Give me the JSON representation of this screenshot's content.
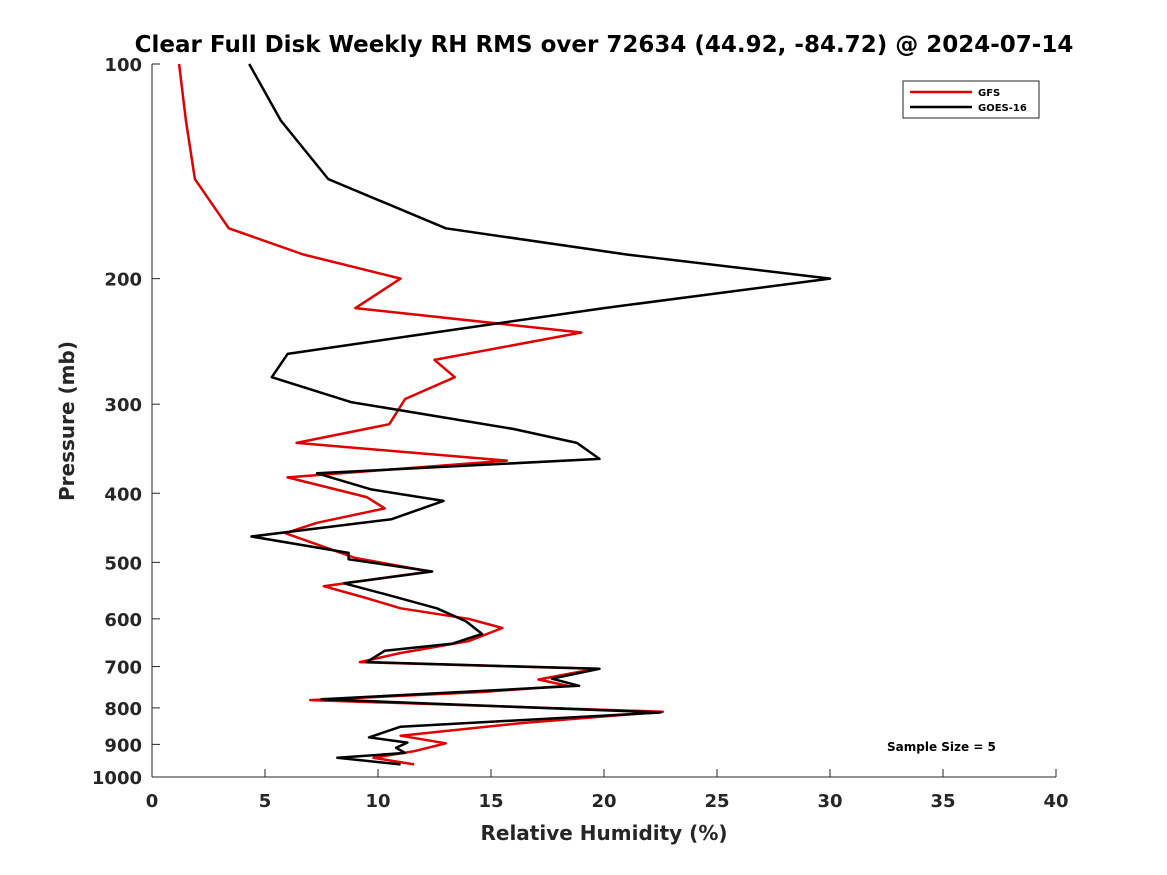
{
  "chart_data": {
    "type": "line",
    "title": "Clear Full Disk Weekly RH RMS over 72634 (44.92, -84.72) @ 2024-07-14",
    "xlabel": "Relative Humidity (%)",
    "ylabel": "Pressure (mb)",
    "xlim": [
      0,
      40
    ],
    "ylim": [
      100,
      1000
    ],
    "yscale": "log",
    "y_reversed": true,
    "xticks": [
      0,
      5,
      10,
      15,
      20,
      25,
      30,
      35,
      40
    ],
    "yticks": [
      100,
      200,
      300,
      400,
      500,
      600,
      700,
      800,
      900,
      1000
    ],
    "legend_location": "top-right",
    "annotation": "Sample Size = 5",
    "series": [
      {
        "name": "GFS",
        "color": "#e00000",
        "x": [
          1.2,
          1.5,
          1.9,
          3.4,
          6.7,
          11.0,
          9.0,
          19.0,
          12.5,
          13.4,
          11.2,
          10.5,
          6.4,
          15.7,
          6.0,
          9.5,
          10.3,
          7.3,
          5.9,
          7.4,
          9.0,
          12.3,
          7.6,
          9.4,
          11.0,
          14.0,
          15.5,
          14.0,
          11.0,
          9.2,
          19.6,
          17.1,
          18.4,
          14.6,
          7.0,
          22.6,
          16.4,
          11.0,
          13.0,
          11.6,
          9.8,
          11.6
        ],
        "y": [
          100,
          120,
          145,
          170,
          185,
          200,
          220,
          238,
          260,
          275,
          295,
          320,
          340,
          360,
          380,
          405,
          420,
          440,
          455,
          473,
          493,
          515,
          540,
          560,
          580,
          600,
          618,
          645,
          670,
          690,
          705,
          730,
          745,
          760,
          780,
          810,
          840,
          875,
          897,
          920,
          940,
          960
        ]
      },
      {
        "name": "GOES-16",
        "color": "#000000",
        "x": [
          4.3,
          5.7,
          7.8,
          13.0,
          21.0,
          30.0,
          20.0,
          12.5,
          6.0,
          5.3,
          8.8,
          16.0,
          18.8,
          19.8,
          7.3,
          9.7,
          12.9,
          10.6,
          4.4,
          8.7,
          8.7,
          12.4,
          8.5,
          10.4,
          12.6,
          13.9,
          14.6,
          13.3,
          10.3,
          9.5,
          19.8,
          17.7,
          18.9,
          7.5,
          22.5,
          11.0,
          9.6,
          11.3,
          10.8,
          11.2,
          8.2,
          11.0
        ],
        "y": [
          100,
          120,
          145,
          170,
          185,
          200,
          220,
          238,
          255,
          275,
          298,
          325,
          340,
          358,
          375,
          395,
          410,
          435,
          460,
          485,
          495,
          515,
          535,
          555,
          580,
          605,
          630,
          650,
          665,
          690,
          705,
          728,
          745,
          778,
          812,
          850,
          880,
          895,
          910,
          925,
          940,
          960
        ]
      }
    ]
  }
}
